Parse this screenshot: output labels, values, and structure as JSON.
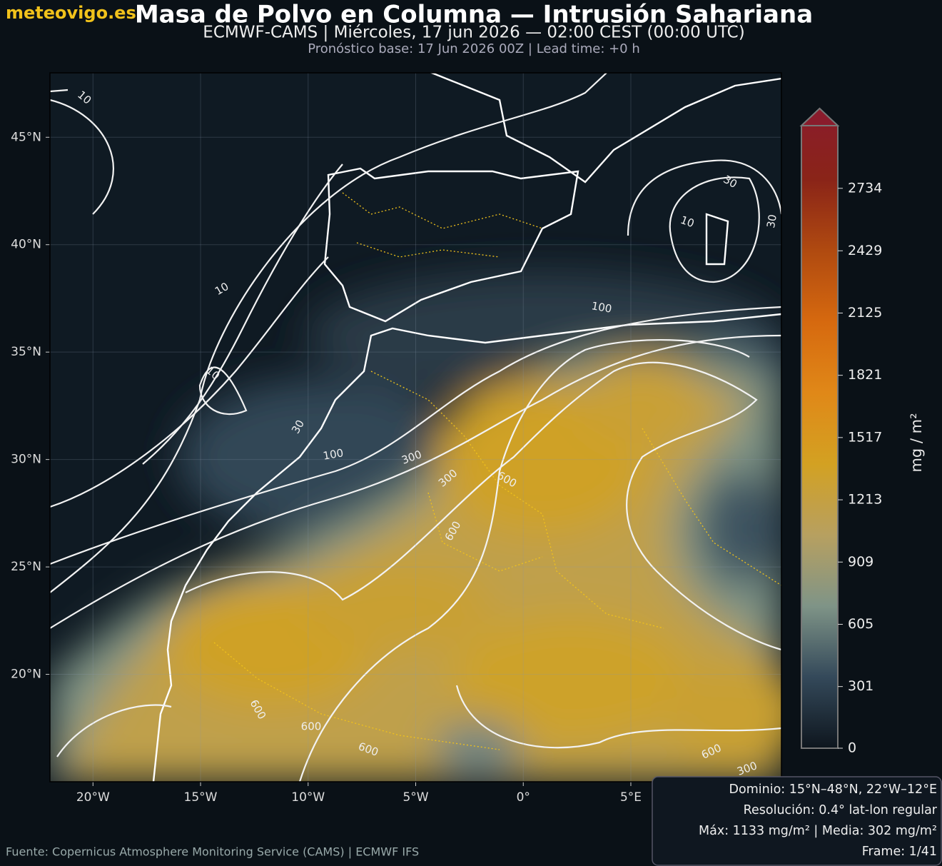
{
  "header": {
    "logo": "meteovigo.es",
    "title": "Masa de Polvo en Columna — Intrusión Sahariana",
    "subtitle": "ECMWF-CAMS | Miércoles, 17 jun 2026 — 02:00 CEST (00:00 UTC)",
    "base": "Pronóstico base: 17 Jun 2026 00Z  |  Lead time: +0 h"
  },
  "map": {
    "xlim": [
      -22,
      12
    ],
    "ylim": [
      15,
      48
    ],
    "grid": true,
    "xticks": [
      {
        "value": -20,
        "label": "20°W"
      },
      {
        "value": -15,
        "label": "15°W"
      },
      {
        "value": -10,
        "label": "10°W"
      },
      {
        "value": -5,
        "label": "5°W"
      },
      {
        "value": 0,
        "label": "0°"
      },
      {
        "value": 5,
        "label": "5°E"
      }
    ],
    "yticks": [
      {
        "value": 20,
        "label": "20°N"
      },
      {
        "value": 25,
        "label": "25°N"
      },
      {
        "value": 30,
        "label": "30°N"
      },
      {
        "value": 35,
        "label": "35°N"
      },
      {
        "value": 40,
        "label": "40°N"
      },
      {
        "value": 45,
        "label": "45°N"
      }
    ],
    "contour_labels": [
      "10",
      "10",
      "10",
      "10",
      "30",
      "30",
      "30",
      "100",
      "100",
      "300",
      "300",
      "600",
      "600",
      "600",
      "600",
      "600",
      "600",
      "300"
    ]
  },
  "colorbar": {
    "label": "mg / m²",
    "lim": [
      0,
      3040
    ],
    "ticks": [
      0,
      301,
      605,
      909,
      1213,
      1517,
      1821,
      2125,
      2429,
      2734
    ],
    "colors": [
      "#0e161e",
      "#34495a",
      "#7f9487",
      "#b7a060",
      "#d3a122",
      "#e08818",
      "#d6690f",
      "#b04a10",
      "#8a2418",
      "#8a1c2c"
    ]
  },
  "info": {
    "lines": [
      "Dominio: 15°N–48°N, 22°W–12°E",
      "Resolución: 0.4° lat-lon regular",
      "Máx: 1133 mg/m²  |  Media: 302 mg/m²",
      "Frame: 1/41"
    ]
  },
  "footer": {
    "source": "Fuente: Copernicus Atmosphere Monitoring Service (CAMS) | ECMWF IFS"
  }
}
